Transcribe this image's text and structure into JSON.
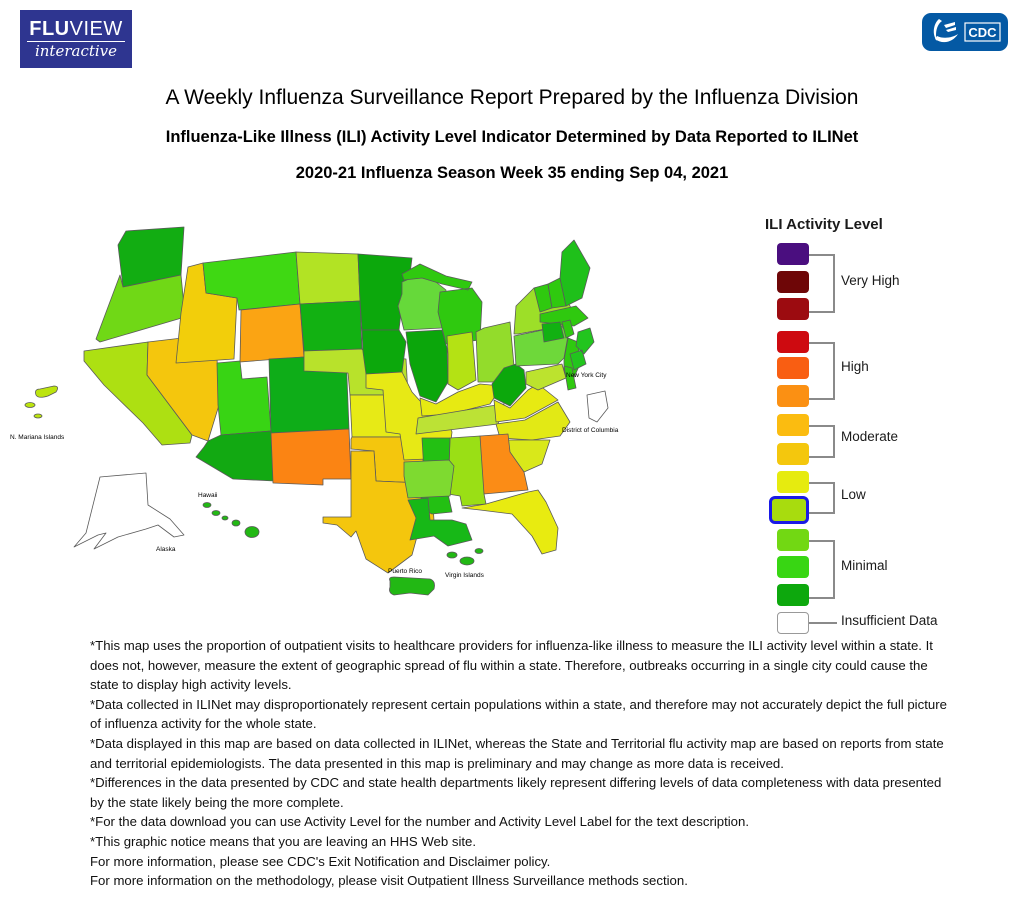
{
  "header": {
    "fluview": {
      "brand_bold": "FLU",
      "brand_rest": "VIEW",
      "tagline": "interactive"
    },
    "cdc": {
      "label": "CDC"
    }
  },
  "titles": {
    "main": "A Weekly Influenza Surveillance Report Prepared by the Influenza Division",
    "sub": "Influenza-Like Illness (ILI) Activity Level Indicator Determined by Data Reported to ILINet",
    "week": "2020-21 Influenza Season Week 35 ending Sep 04, 2021"
  },
  "legend": {
    "title": "ILI Activity Level",
    "highlight_border": "#1A1AE6",
    "groups": [
      {
        "label": "Very High"
      },
      {
        "label": "High"
      },
      {
        "label": "Moderate"
      },
      {
        "label": "Low"
      },
      {
        "label": "Minimal"
      },
      {
        "label": "Insufficient Data"
      }
    ],
    "levels": [
      {
        "level": 13,
        "group": "Very High",
        "color": "#4A0E7F"
      },
      {
        "level": 12,
        "group": "Very High",
        "color": "#6E0607"
      },
      {
        "level": 11,
        "group": "Very High",
        "color": "#9C0B10"
      },
      {
        "level": 10,
        "group": "High",
        "color": "#CE0A10"
      },
      {
        "level": 9,
        "group": "High",
        "color": "#F95E12"
      },
      {
        "level": 8,
        "group": "High",
        "color": "#FB9013"
      },
      {
        "level": 7,
        "group": "Moderate",
        "color": "#FBBC10"
      },
      {
        "level": 6,
        "group": "Moderate",
        "color": "#F4C70D"
      },
      {
        "level": 5,
        "group": "Low",
        "color": "#E6EB0F"
      },
      {
        "level": 4,
        "group": "Low",
        "color": "#A8DC0E",
        "highlighted": true
      },
      {
        "level": 3,
        "group": "Minimal",
        "color": "#72D813"
      },
      {
        "level": 2,
        "group": "Minimal",
        "color": "#38D613"
      },
      {
        "level": 1,
        "group": "Minimal",
        "color": "#0DA80D"
      },
      {
        "level": 0,
        "group": "Insufficient Data",
        "color": "#FFFFFF"
      }
    ]
  },
  "map": {
    "labels": {
      "nyc": "New York City",
      "dc": "District of Columbia",
      "mp": "N. Mariana Islands",
      "ak": "Alaska",
      "hi": "Hawaii",
      "pr": "Puerto Rico",
      "vi": "Virgin Islands"
    }
  },
  "chart_data": {
    "type": "choropleth",
    "title": "Influenza-Like Illness (ILI) Activity Level Indicator Determined by Data Reported to ILINet",
    "subtitle": "2020-21 Influenza Season Week 35 ending Sep 04, 2021",
    "legend_title": "ILI Activity Level",
    "activity_bands": {
      "Very High": [
        11,
        13
      ],
      "High": [
        8,
        10
      ],
      "Moderate": [
        6,
        7
      ],
      "Low": [
        4,
        5
      ],
      "Minimal": [
        1,
        3
      ]
    },
    "states": {
      "WA": {
        "name": "Washington",
        "band": "Minimal",
        "fill": "#12AD12"
      },
      "OR": {
        "name": "Oregon",
        "band": "Minimal",
        "fill": "#70D816"
      },
      "CA": {
        "name": "California",
        "band": "Low",
        "fill": "#ADE012"
      },
      "NV": {
        "name": "Nevada",
        "band": "Moderate",
        "fill": "#F4C60D"
      },
      "ID": {
        "name": "Idaho",
        "band": "Moderate",
        "fill": "#F2CE0B"
      },
      "MT": {
        "name": "Montana",
        "band": "Minimal",
        "fill": "#3FD813"
      },
      "WY": {
        "name": "Wyoming",
        "band": "Moderate",
        "fill": "#FBA413"
      },
      "UT": {
        "name": "Utah",
        "band": "Minimal",
        "fill": "#38D414"
      },
      "CO": {
        "name": "Colorado",
        "band": "Minimal",
        "fill": "#0EAD18"
      },
      "AZ": {
        "name": "Arizona",
        "band": "Minimal",
        "fill": "#12A912"
      },
      "NM": {
        "name": "New Mexico",
        "band": "High",
        "fill": "#FB8413"
      },
      "ND": {
        "name": "North Dakota",
        "band": "Low",
        "fill": "#B2E324"
      },
      "SD": {
        "name": "South Dakota",
        "band": "Minimal",
        "fill": "#12B112"
      },
      "NE": {
        "name": "Nebraska",
        "band": "Low",
        "fill": "#B8E22B"
      },
      "KS": {
        "name": "Kansas",
        "band": "Low",
        "fill": "#E7EA16"
      },
      "OK": {
        "name": "Oklahoma",
        "band": "Moderate",
        "fill": "#F4C60D"
      },
      "TX": {
        "name": "Texas",
        "band": "Moderate",
        "fill": "#F4C60D"
      },
      "MN": {
        "name": "Minnesota",
        "band": "Minimal",
        "fill": "#0CA80C"
      },
      "IA": {
        "name": "Iowa",
        "band": "Minimal",
        "fill": "#0CA80C"
      },
      "MO": {
        "name": "Missouri",
        "band": "Low",
        "fill": "#E7E915"
      },
      "AR": {
        "name": "Arkansas",
        "band": "Minimal",
        "fill": "#7EDA30"
      },
      "LA": {
        "name": "Louisiana",
        "band": "Minimal",
        "fill": "#17B817"
      },
      "WI": {
        "name": "Wisconsin",
        "band": "Minimal",
        "fill": "#66D93A"
      },
      "MI": {
        "name": "Michigan",
        "band": "Minimal",
        "fill": "#2FC90F"
      },
      "IL": {
        "name": "Illinois",
        "band": "Minimal",
        "fill": "#0BA60B"
      },
      "IN": {
        "name": "Indiana",
        "band": "Low",
        "fill": "#B4E214"
      },
      "OH": {
        "name": "Ohio",
        "band": "Minimal",
        "fill": "#93DC2B"
      },
      "KY": {
        "name": "Kentucky",
        "band": "Low",
        "fill": "#E7EA12"
      },
      "TN": {
        "name": "Tennessee",
        "band": "Low",
        "fill": "#BCE235"
      },
      "MS": {
        "name": "Mississippi",
        "band": "Minimal",
        "fill": "#23C013"
      },
      "AL": {
        "name": "Alabama",
        "band": "Minimal",
        "fill": "#9ADF15"
      },
      "GA": {
        "name": "Georgia",
        "band": "High",
        "fill": "#FB8C16"
      },
      "FL": {
        "name": "Florida",
        "band": "Low",
        "fill": "#E8EB10"
      },
      "SC": {
        "name": "South Carolina",
        "band": "Low",
        "fill": "#D9E81A"
      },
      "NC": {
        "name": "North Carolina",
        "band": "Low",
        "fill": "#E2E915"
      },
      "VA": {
        "name": "Virginia",
        "band": "Low",
        "fill": "#E7EA12"
      },
      "WV": {
        "name": "West Virginia",
        "band": "Minimal",
        "fill": "#0CA80C"
      },
      "MD": {
        "name": "Maryland",
        "band": "Low",
        "fill": "#BCE32E"
      },
      "DE": {
        "name": "Delaware",
        "band": "Minimal",
        "fill": "#2FC90F"
      },
      "NJ": {
        "name": "New Jersey",
        "band": "Minimal",
        "fill": "#2FC90F"
      },
      "PA": {
        "name": "Pennsylvania",
        "band": "Minimal",
        "fill": "#6ED83A"
      },
      "NY": {
        "name": "New York",
        "band": "Low",
        "fill": "#9DDF28"
      },
      "CT": {
        "name": "Connecticut",
        "band": "Minimal",
        "fill": "#12B112"
      },
      "RI": {
        "name": "Rhode Island",
        "band": "Minimal",
        "fill": "#2FC90F"
      },
      "MA": {
        "name": "Massachusetts",
        "band": "Minimal",
        "fill": "#2FC90F"
      },
      "VT": {
        "name": "Vermont",
        "band": "Minimal",
        "fill": "#2FC90F"
      },
      "NH": {
        "name": "New Hampshire",
        "band": "Minimal",
        "fill": "#2FC90F"
      },
      "ME": {
        "name": "Maine",
        "band": "Minimal",
        "fill": "#1FC01A"
      },
      "NYC": {
        "name": "New York City",
        "band": "Minimal",
        "fill": "#22C51E"
      },
      "DC": {
        "name": "District of Columbia",
        "band": "Insufficient Data",
        "fill": "#FFFFFF"
      },
      "AK": {
        "name": "Alaska",
        "band": "Insufficient Data",
        "fill": "#FFFFFF"
      },
      "HI": {
        "name": "Hawaii",
        "band": "Minimal",
        "fill": "#22B814"
      },
      "PR": {
        "name": "Puerto Rico",
        "band": "Minimal",
        "fill": "#22B814"
      },
      "VI": {
        "name": "Virgin Islands",
        "band": "Minimal",
        "fill": "#22B814"
      },
      "MP": {
        "name": "N. Mariana Islands",
        "band": "Low",
        "fill": "#BCE40E"
      }
    }
  },
  "footer": {
    "notes": [
      "*This map uses the proportion of outpatient visits to healthcare providers for influenza-like illness to measure the ILI activity level within a state. It does not, however, measure the extent of geographic spread of flu within a state. Therefore, outbreaks occurring in a single city could cause the state to display high activity levels.",
      "*Data collected in ILINet may disproportionately represent certain populations within a state, and therefore may not accurately depict the full picture of influenza activity for the whole state.",
      "*Data displayed in this map are based on data collected in ILINet, whereas the State and Territorial flu activity map are based on reports from state and territorial epidemiologists. The data presented in this map is preliminary and may change as more data is received.",
      "*Differences in the data presented by CDC and state health departments likely represent differing levels of data completeness with data presented by the state likely being the more complete.",
      "*For the data download you can use Activity Level for the number and Activity Level Label for the text description.",
      "*This graphic notice means that you are leaving an HHS Web site.",
      "For more information, please see CDC's Exit Notification and Disclaimer policy.",
      "For more information on the methodology, please visit Outpatient Illness Surveillance methods section."
    ]
  }
}
